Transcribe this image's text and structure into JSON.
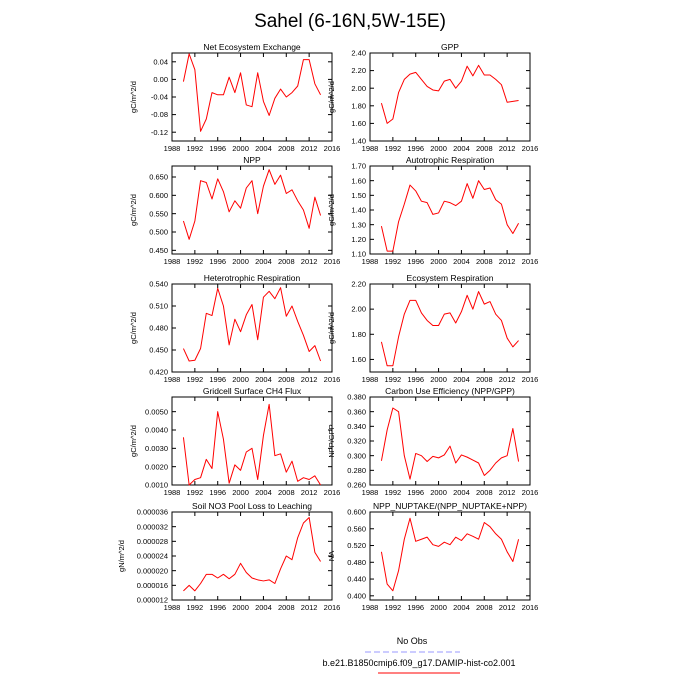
{
  "figure": {
    "title": "Sahel (6-16N,5W-15E)"
  },
  "colors": {
    "series": "#ff0000",
    "obs": "#9999ff",
    "axis": "#000000"
  },
  "legend": {
    "obs_label": "No Obs",
    "model_label": "b.e21.B1850cmip6.f09_g17.DAMIP-hist-co2.001"
  },
  "chart_data": [
    {
      "type": "line",
      "title": "Net Ecosystem Exchange",
      "ylabel": "gC/m^2/d",
      "xlim": [
        1988,
        2016
      ],
      "ylim": [
        -0.14,
        0.06
      ],
      "xticks": [
        1988,
        1992,
        1996,
        2000,
        2004,
        2008,
        2012,
        2016
      ],
      "xtick_labels": [
        "1988",
        "1992",
        "1996",
        "2000",
        "2004",
        "2008",
        "2012",
        "2016"
      ],
      "yticks": [
        -0.12,
        -0.08,
        -0.04,
        0.0,
        0.04
      ],
      "ytick_labels": [
        "-0.12",
        "-0.08",
        "-0.04",
        "0.00",
        "0.04"
      ],
      "x": [
        1990,
        1991,
        1992,
        1993,
        1994,
        1995,
        1996,
        1997,
        1998,
        1999,
        2000,
        2001,
        2002,
        2003,
        2004,
        2005,
        2006,
        2007,
        2008,
        2009,
        2010,
        2011,
        2012,
        2013,
        2014
      ],
      "series": [
        {
          "values": [
            -0.005,
            0.058,
            0.022,
            -0.118,
            -0.09,
            -0.03,
            -0.035,
            -0.035,
            0.005,
            -0.03,
            0.015,
            -0.058,
            -0.062,
            0.015,
            -0.05,
            -0.082,
            -0.043,
            -0.022,
            -0.04,
            -0.03,
            -0.015,
            0.045,
            0.045,
            -0.01,
            -0.035
          ]
        }
      ]
    },
    {
      "type": "line",
      "title": "GPP",
      "ylabel": "gC/m^2/d",
      "xlim": [
        1988,
        2016
      ],
      "ylim": [
        1.4,
        2.4
      ],
      "xticks": [
        1988,
        1992,
        1996,
        2000,
        2004,
        2008,
        2012,
        2016
      ],
      "xtick_labels": [
        "1988",
        "1992",
        "1996",
        "2000",
        "2004",
        "2008",
        "2012",
        "2016"
      ],
      "yticks": [
        1.4,
        1.6,
        1.8,
        2.0,
        2.2,
        2.4
      ],
      "ytick_labels": [
        "1.40",
        "1.60",
        "1.80",
        "2.00",
        "2.20",
        "2.40"
      ],
      "x": [
        1990,
        1991,
        1992,
        1993,
        1994,
        1995,
        1996,
        1997,
        1998,
        1999,
        2000,
        2001,
        2002,
        2003,
        2004,
        2005,
        2006,
        2007,
        2008,
        2009,
        2010,
        2011,
        2012,
        2013,
        2014
      ],
      "series": [
        {
          "values": [
            1.83,
            1.6,
            1.65,
            1.95,
            2.1,
            2.16,
            2.18,
            2.1,
            2.02,
            1.98,
            1.97,
            2.08,
            2.1,
            2.0,
            2.08,
            2.25,
            2.14,
            2.26,
            2.15,
            2.15,
            2.1,
            2.04,
            1.84,
            1.85,
            1.86
          ]
        }
      ]
    },
    {
      "type": "line",
      "title": "NPP",
      "ylabel": "gC/m^2/d",
      "xlim": [
        1988,
        2016
      ],
      "ylim": [
        0.44,
        0.68
      ],
      "xticks": [
        1988,
        1992,
        1996,
        2000,
        2004,
        2008,
        2012,
        2016
      ],
      "xtick_labels": [
        "1988",
        "1992",
        "1996",
        "2000",
        "2004",
        "2008",
        "2012",
        "2016"
      ],
      "yticks": [
        0.45,
        0.5,
        0.55,
        0.6,
        0.65
      ],
      "ytick_labels": [
        "0.450",
        "0.500",
        "0.550",
        "0.600",
        "0.650"
      ],
      "x": [
        1990,
        1991,
        1992,
        1993,
        1994,
        1995,
        1996,
        1997,
        1998,
        1999,
        2000,
        2001,
        2002,
        2003,
        2004,
        2005,
        2006,
        2007,
        2008,
        2009,
        2010,
        2011,
        2012,
        2013,
        2014
      ],
      "series": [
        {
          "values": [
            0.53,
            0.48,
            0.53,
            0.64,
            0.635,
            0.59,
            0.645,
            0.61,
            0.555,
            0.585,
            0.565,
            0.62,
            0.64,
            0.55,
            0.625,
            0.67,
            0.63,
            0.655,
            0.605,
            0.615,
            0.585,
            0.56,
            0.51,
            0.595,
            0.545
          ]
        }
      ]
    },
    {
      "type": "line",
      "title": "Autotrophic Respiration",
      "ylabel": "gC/m^2/d",
      "xlim": [
        1988,
        2016
      ],
      "ylim": [
        1.1,
        1.7
      ],
      "xticks": [
        1988,
        1992,
        1996,
        2000,
        2004,
        2008,
        2012,
        2016
      ],
      "xtick_labels": [
        "1988",
        "1992",
        "1996",
        "2000",
        "2004",
        "2008",
        "2012",
        "2016"
      ],
      "yticks": [
        1.1,
        1.2,
        1.3,
        1.4,
        1.5,
        1.6,
        1.7
      ],
      "ytick_labels": [
        "1.10",
        "1.20",
        "1.30",
        "1.40",
        "1.50",
        "1.60",
        "1.70"
      ],
      "x": [
        1990,
        1991,
        1992,
        1993,
        1994,
        1995,
        1996,
        1997,
        1998,
        1999,
        2000,
        2001,
        2002,
        2003,
        2004,
        2005,
        2006,
        2007,
        2008,
        2009,
        2010,
        2011,
        2012,
        2013,
        2014
      ],
      "series": [
        {
          "values": [
            1.29,
            1.12,
            1.12,
            1.32,
            1.44,
            1.57,
            1.53,
            1.46,
            1.45,
            1.37,
            1.38,
            1.46,
            1.45,
            1.43,
            1.46,
            1.58,
            1.48,
            1.6,
            1.54,
            1.55,
            1.47,
            1.44,
            1.3,
            1.24,
            1.31
          ]
        }
      ]
    },
    {
      "type": "line",
      "title": "Heterotrophic Respiration",
      "ylabel": "gC/m^2/d",
      "xlim": [
        1988,
        2016
      ],
      "ylim": [
        0.42,
        0.54
      ],
      "xticks": [
        1988,
        1992,
        1996,
        2000,
        2004,
        2008,
        2012,
        2016
      ],
      "xtick_labels": [
        "1988",
        "1992",
        "1996",
        "2000",
        "2004",
        "2008",
        "2012",
        "2016"
      ],
      "yticks": [
        0.42,
        0.45,
        0.48,
        0.51,
        0.54
      ],
      "ytick_labels": [
        "0.420",
        "0.450",
        "0.480",
        "0.510",
        "0.540"
      ],
      "x": [
        1990,
        1991,
        1992,
        1993,
        1994,
        1995,
        1996,
        1997,
        1998,
        1999,
        2000,
        2001,
        2002,
        2003,
        2004,
        2005,
        2006,
        2007,
        2008,
        2009,
        2010,
        2011,
        2012,
        2013,
        2014
      ],
      "series": [
        {
          "values": [
            0.452,
            0.435,
            0.436,
            0.452,
            0.5,
            0.497,
            0.534,
            0.51,
            0.457,
            0.492,
            0.475,
            0.498,
            0.512,
            0.464,
            0.522,
            0.53,
            0.52,
            0.535,
            0.496,
            0.51,
            0.489,
            0.47,
            0.448,
            0.456,
            0.435
          ]
        }
      ]
    },
    {
      "type": "line",
      "title": "Ecosystem Respiration",
      "ylabel": "gC/m^2/d",
      "xlim": [
        1988,
        2016
      ],
      "ylim": [
        1.5,
        2.2
      ],
      "xticks": [
        1988,
        1992,
        1996,
        2000,
        2004,
        2008,
        2012,
        2016
      ],
      "xtick_labels": [
        "1988",
        "1992",
        "1996",
        "2000",
        "2004",
        "2008",
        "2012",
        "2016"
      ],
      "yticks": [
        1.6,
        1.8,
        2.0,
        2.2
      ],
      "ytick_labels": [
        "1.60",
        "1.80",
        "2.00",
        "2.20"
      ],
      "x": [
        1990,
        1991,
        1992,
        1993,
        1994,
        1995,
        1996,
        1997,
        1998,
        1999,
        2000,
        2001,
        2002,
        2003,
        2004,
        2005,
        2006,
        2007,
        2008,
        2009,
        2010,
        2011,
        2012,
        2013,
        2014
      ],
      "series": [
        {
          "values": [
            1.74,
            1.55,
            1.55,
            1.78,
            1.96,
            2.07,
            2.07,
            1.97,
            1.91,
            1.87,
            1.87,
            1.96,
            1.97,
            1.89,
            1.98,
            2.11,
            2.0,
            2.14,
            2.04,
            2.06,
            1.96,
            1.91,
            1.77,
            1.7,
            1.75
          ]
        }
      ]
    },
    {
      "type": "line",
      "title": "Gridcell Surface CH4 Flux",
      "ylabel": "gC/m^2/d",
      "xlim": [
        1988,
        2016
      ],
      "ylim": [
        0.001,
        0.0058
      ],
      "xticks": [
        1988,
        1992,
        1996,
        2000,
        2004,
        2008,
        2012,
        2016
      ],
      "xtick_labels": [
        "1988",
        "1992",
        "1996",
        "2000",
        "2004",
        "2008",
        "2012",
        "2016"
      ],
      "yticks": [
        0.001,
        0.002,
        0.003,
        0.004,
        0.005
      ],
      "ytick_labels": [
        "0.0010",
        "0.0020",
        "0.0030",
        "0.0040",
        "0.0050"
      ],
      "x": [
        1990,
        1991,
        1992,
        1993,
        1994,
        1995,
        1996,
        1997,
        1998,
        1999,
        2000,
        2001,
        2002,
        2003,
        2004,
        2005,
        2006,
        2007,
        2008,
        2009,
        2010,
        2011,
        2012,
        2013,
        2014
      ],
      "series": [
        {
          "values": [
            0.0036,
            0.001,
            0.0013,
            0.0014,
            0.0024,
            0.0019,
            0.005,
            0.0035,
            0.0011,
            0.0021,
            0.0018,
            0.0028,
            0.003,
            0.0013,
            0.0037,
            0.0054,
            0.0026,
            0.0027,
            0.0017,
            0.0023,
            0.0012,
            0.0014,
            0.0013,
            0.0015,
            0.001
          ]
        }
      ]
    },
    {
      "type": "line",
      "title": "Carbon Use Efficiency (NPP/GPP)",
      "ylabel": "NPP/GPP",
      "xlim": [
        1988,
        2016
      ],
      "ylim": [
        0.26,
        0.38
      ],
      "xticks": [
        1988,
        1992,
        1996,
        2000,
        2004,
        2008,
        2012,
        2016
      ],
      "xtick_labels": [
        "1988",
        "1992",
        "1996",
        "2000",
        "2004",
        "2008",
        "2012",
        "2016"
      ],
      "yticks": [
        0.26,
        0.28,
        0.3,
        0.32,
        0.34,
        0.36,
        0.38
      ],
      "ytick_labels": [
        "0.260",
        "0.280",
        "0.300",
        "0.320",
        "0.340",
        "0.360",
        "0.380"
      ],
      "x": [
        1990,
        1991,
        1992,
        1993,
        1994,
        1995,
        1996,
        1997,
        1998,
        1999,
        2000,
        2001,
        2002,
        2003,
        2004,
        2005,
        2006,
        2007,
        2008,
        2009,
        2010,
        2011,
        2012,
        2013,
        2014
      ],
      "series": [
        {
          "values": [
            0.293,
            0.335,
            0.365,
            0.36,
            0.3,
            0.268,
            0.303,
            0.3,
            0.292,
            0.299,
            0.297,
            0.301,
            0.313,
            0.29,
            0.301,
            0.298,
            0.294,
            0.29,
            0.273,
            0.28,
            0.29,
            0.297,
            0.3,
            0.337,
            0.292
          ]
        }
      ]
    },
    {
      "type": "line",
      "title": "Soil NO3 Pool Loss to Leaching",
      "ylabel": "gN/m^2/d",
      "xlim": [
        1988,
        2016
      ],
      "ylim": [
        1.2e-05,
        3.6e-05
      ],
      "xticks": [
        1988,
        1992,
        1996,
        2000,
        2004,
        2008,
        2012,
        2016
      ],
      "xtick_labels": [
        "1988",
        "1992",
        "1996",
        "2000",
        "2004",
        "2008",
        "2012",
        "2016"
      ],
      "yticks": [
        1.2e-05,
        1.6e-05,
        2e-05,
        2.4e-05,
        2.8e-05,
        3.2e-05,
        3.6e-05
      ],
      "ytick_labels": [
        "0.000012",
        "0.000016",
        "0.000020",
        "0.000024",
        "0.000028",
        "0.000032",
        "0.000036"
      ],
      "x": [
        1990,
        1991,
        1992,
        1993,
        1994,
        1995,
        1996,
        1997,
        1998,
        1999,
        2000,
        2001,
        2002,
        2003,
        2004,
        2005,
        2006,
        2007,
        2008,
        2009,
        2010,
        2011,
        2012,
        2013,
        2014
      ],
      "series": [
        {
          "values": [
            1.45e-05,
            1.6e-05,
            1.45e-05,
            1.65e-05,
            1.9e-05,
            1.9e-05,
            1.8e-05,
            1.9e-05,
            1.78e-05,
            1.9e-05,
            2.2e-05,
            1.95e-05,
            1.8e-05,
            1.75e-05,
            1.72e-05,
            1.75e-05,
            1.65e-05,
            2.05e-05,
            2.4e-05,
            2.3e-05,
            2.9e-05,
            3.3e-05,
            3.45e-05,
            2.5e-05,
            2.25e-05
          ]
        }
      ]
    },
    {
      "type": "line",
      "title": "NPP_NUPTAKE/(NPP_NUPTAKE+NPP)",
      "ylabel": "NA",
      "xlim": [
        1988,
        2016
      ],
      "ylim": [
        0.39,
        0.6
      ],
      "xticks": [
        1988,
        1992,
        1996,
        2000,
        2004,
        2008,
        2012,
        2016
      ],
      "xtick_labels": [
        "1988",
        "1992",
        "1996",
        "2000",
        "2004",
        "2008",
        "2012",
        "2016"
      ],
      "yticks": [
        0.4,
        0.44,
        0.48,
        0.52,
        0.56,
        0.6
      ],
      "ytick_labels": [
        "0.400",
        "0.440",
        "0.480",
        "0.520",
        "0.560",
        "0.600"
      ],
      "x": [
        1990,
        1991,
        1992,
        1993,
        1994,
        1995,
        1996,
        1997,
        1998,
        1999,
        2000,
        2001,
        2002,
        2003,
        2004,
        2005,
        2006,
        2007,
        2008,
        2009,
        2010,
        2011,
        2012,
        2013,
        2014
      ],
      "series": [
        {
          "values": [
            0.505,
            0.428,
            0.412,
            0.46,
            0.535,
            0.585,
            0.53,
            0.535,
            0.54,
            0.522,
            0.518,
            0.528,
            0.522,
            0.54,
            0.532,
            0.548,
            0.542,
            0.535,
            0.575,
            0.565,
            0.548,
            0.535,
            0.505,
            0.482,
            0.535
          ]
        }
      ]
    }
  ]
}
